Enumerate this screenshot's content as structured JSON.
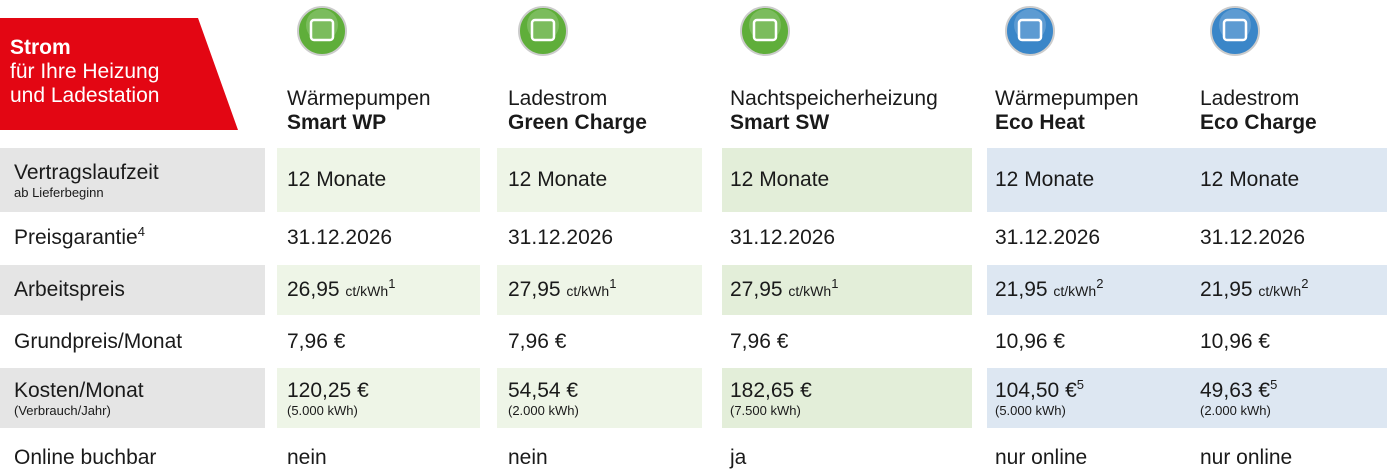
{
  "header": {
    "badge": {
      "title": "Strom",
      "lines": [
        "für Ihre Heizung",
        "und Ladestation"
      ]
    },
    "products": [
      {
        "type": "Wärmepumpen",
        "name": "Smart WP"
      },
      {
        "type": "Ladestrom",
        "name": "Green Charge"
      },
      {
        "type": "Nachtspeicherheizung",
        "name": "Smart SW"
      },
      {
        "type": "Wärmepumpen",
        "name": "Eco Heat"
      },
      {
        "type": "Ladestrom",
        "name": "Eco Charge"
      }
    ]
  },
  "rows": [
    {
      "label": "Vertragslaufzeit",
      "sublabel": "ab Lieferbeginn",
      "cells": [
        {
          "value": "12 Monate"
        },
        {
          "value": "12 Monate"
        },
        {
          "value": "12 Monate"
        },
        {
          "value": "12 Monate"
        },
        {
          "value": "12 Monate"
        }
      ]
    },
    {
      "label": "Preisgarantie",
      "label_note": "4",
      "cells": [
        {
          "value": "31.12.2026"
        },
        {
          "value": "31.12.2026"
        },
        {
          "value": "31.12.2026"
        },
        {
          "value": "31.12.2026"
        },
        {
          "value": "31.12.2026"
        }
      ]
    },
    {
      "label": "Arbeitspreis",
      "cells": [
        {
          "value": "26,95",
          "unit": "ct/kWh",
          "note": "1"
        },
        {
          "value": "27,95",
          "unit": "ct/kWh",
          "note": "1"
        },
        {
          "value": "27,95",
          "unit": "ct/kWh",
          "note": "1"
        },
        {
          "value": "21,95",
          "unit": "ct/kWh",
          "note": "2"
        },
        {
          "value": "21,95",
          "unit": "ct/kWh",
          "note": "2"
        }
      ]
    },
    {
      "label": "Grundpreis/Monat",
      "cells": [
        {
          "value": "7,96 €"
        },
        {
          "value": "7,96 €"
        },
        {
          "value": "7,96 €"
        },
        {
          "value": "10,96 €"
        },
        {
          "value": "10,96 €"
        }
      ]
    },
    {
      "label": "Kosten/Monat",
      "sublabel": "(Verbrauch/Jahr)",
      "cells": [
        {
          "value": "120,25 €",
          "sub": "(5.000 kWh)"
        },
        {
          "value": "54,54 €",
          "sub": "(2.000 kWh)"
        },
        {
          "value": "182,65 €",
          "sub": "(7.500 kWh)"
        },
        {
          "value": "104,50 €",
          "note": "5",
          "sub": "(5.000 kWh)"
        },
        {
          "value": "49,63 €",
          "note": "5",
          "sub": "(2.000 kWh)"
        }
      ]
    },
    {
      "label": "Online buchbar",
      "cells": [
        {
          "value": "nein"
        },
        {
          "value": "nein"
        },
        {
          "value": "ja"
        },
        {
          "value": "nur online"
        },
        {
          "value": "nur online"
        }
      ]
    }
  ]
}
